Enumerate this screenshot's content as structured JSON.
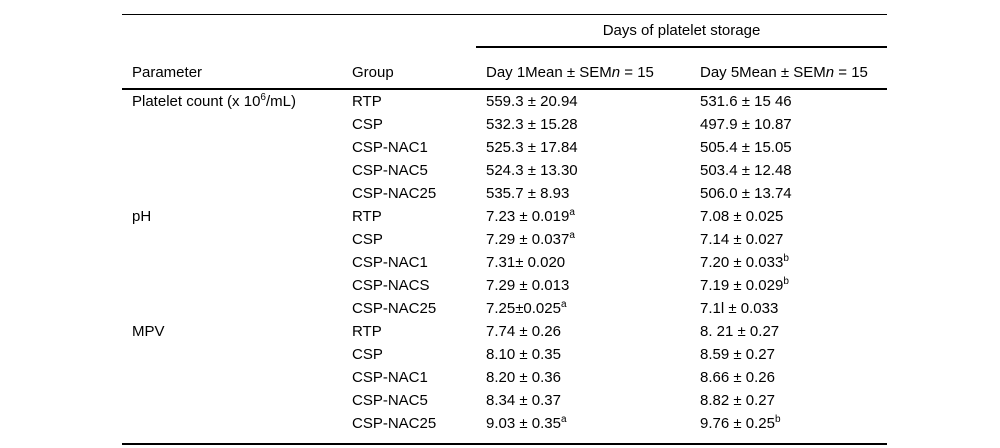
{
  "table": {
    "spanner_header": "Days of platelet storage",
    "columns": {
      "parameter": "Parameter",
      "group": "Group",
      "day1": {
        "pre": "Day 1Mean ± SEM",
        "italic": "n",
        "post": " = 15"
      },
      "day5": {
        "pre": "Day 5Mean ± SEM",
        "italic": "n",
        "post": " = 15"
      }
    },
    "sections": [
      {
        "parameter": {
          "pre": "Platelet count (x 10",
          "sup": "6",
          "post": "/mL)"
        },
        "rows": [
          {
            "group": "RTP",
            "day1": {
              "pre": "559.3 ± 20.94"
            },
            "day5": {
              "pre": "531.6 ± 15 46"
            }
          },
          {
            "group": "CSP",
            "day1": {
              "pre": "532.3 ± 15.28"
            },
            "day5": {
              "pre": "497.9 ± 10.87"
            }
          },
          {
            "group": "CSP-NAC1",
            "day1": {
              "pre": "525.3 ± 17.84"
            },
            "day5": {
              "pre": "505.4 ± 15.05"
            }
          },
          {
            "group": "CSP-NAC5",
            "day1": {
              "pre": "524.3 ± 13.30"
            },
            "day5": {
              "pre": "503.4 ± 12.48"
            }
          },
          {
            "group": "CSP-NAC25",
            "day1": {
              "pre": "535.7 ± 8.93"
            },
            "day5": {
              "pre": "506.0 ± 13.74"
            }
          }
        ]
      },
      {
        "parameter": {
          "pre": "pH"
        },
        "rows": [
          {
            "group": "RTP",
            "day1": {
              "pre": "7.23 ± 0.019",
              "sup": "a"
            },
            "day5": {
              "pre": "7.08 ± 0.025"
            }
          },
          {
            "group": "CSP",
            "day1": {
              "pre": "7.29 ± 0.037",
              "sup": "a"
            },
            "day5": {
              "pre": "7.14 ± 0.027"
            }
          },
          {
            "group": "CSP-NAC1",
            "day1": {
              "pre": "7.31± 0.020"
            },
            "day5": {
              "pre": "7.20 ± 0.033",
              "sup": "b"
            }
          },
          {
            "group": "CSP-NACS",
            "day1": {
              "pre": "7.29 ± 0.013"
            },
            "day5": {
              "pre": "7.19 ± 0.029",
              "sup": "b"
            }
          },
          {
            "group": "CSP-NAC25",
            "day1": {
              "pre": "7.25±0.025",
              "sup": "a"
            },
            "day5": {
              "pre": "7.1l ± 0.033"
            }
          }
        ]
      },
      {
        "parameter": {
          "pre": "MPV"
        },
        "rows": [
          {
            "group": "RTP",
            "day1": {
              "pre": "7.74 ± 0.26"
            },
            "day5": {
              "pre": "8. 21 ± 0.27"
            }
          },
          {
            "group": "CSP",
            "day1": {
              "pre": "8.10 ± 0.35"
            },
            "day5": {
              "pre": "8.59 ± 0.27"
            }
          },
          {
            "group": "CSP-NAC1",
            "day1": {
              "pre": "8.20 ± 0.36"
            },
            "day5": {
              "pre": "8.66 ± 0.26"
            }
          },
          {
            "group": "CSP-NAC5",
            "day1": {
              "pre": "8.34 ± 0.37"
            },
            "day5": {
              "pre": "8.82 ± 0.27"
            }
          },
          {
            "group": "CSP-NAC25",
            "day1": {
              "pre": "9.03 ± 0.35",
              "sup": "a"
            },
            "day5": {
              "pre": "9.76 ± 0.25",
              "sup": "b"
            }
          }
        ]
      }
    ]
  }
}
